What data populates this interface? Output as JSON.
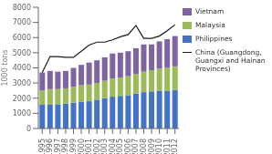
{
  "chart_data": {
    "type": "bar",
    "stacked": true,
    "ylabel": "1000 tons",
    "grid": false,
    "legend": "right",
    "categories": [
      "1995",
      "1996",
      "1997",
      "1998",
      "1999",
      "2000",
      "2001",
      "2002",
      "2003",
      "2004",
      "2005",
      "2006",
      "2007",
      "2008",
      "2009",
      "2010",
      "2011",
      "2012"
    ],
    "ylim": [
      0,
      8000
    ],
    "yticks": [
      0,
      1000,
      2000,
      3000,
      4000,
      5000,
      6000,
      7000,
      8000
    ],
    "series": [
      {
        "name": "Philippines",
        "color": "#4472C4",
        "values": [
          1600,
          1600,
          1600,
          1650,
          1700,
          1750,
          1800,
          1900,
          2000,
          2100,
          2150,
          2200,
          2300,
          2400,
          2450,
          2500,
          2500,
          2550
        ]
      },
      {
        "name": "Malaysia",
        "color": "#9BBB59",
        "values": [
          900,
          1000,
          1000,
          1000,
          1050,
          1100,
          1100,
          1100,
          1150,
          1200,
          1200,
          1250,
          1300,
          1350,
          1400,
          1450,
          1500,
          1550
        ]
      },
      {
        "name": "Vietnam",
        "color": "#8064A2",
        "values": [
          1200,
          1200,
          1150,
          1150,
          1250,
          1350,
          1450,
          1500,
          1550,
          1650,
          1650,
          1650,
          1700,
          1800,
          1700,
          1800,
          1900,
          2000
        ]
      },
      {
        "name": "China (Guangdong,\nGuangxi and Hainan\nProvinces)",
        "type": "line",
        "color": "#1a1a1a",
        "values": [
          3700,
          4750,
          4750,
          4700,
          4700,
          5100,
          5500,
          5700,
          5700,
          5850,
          6050,
          6200,
          6800,
          5950,
          5950,
          6100,
          6450,
          6850
        ]
      }
    ]
  }
}
